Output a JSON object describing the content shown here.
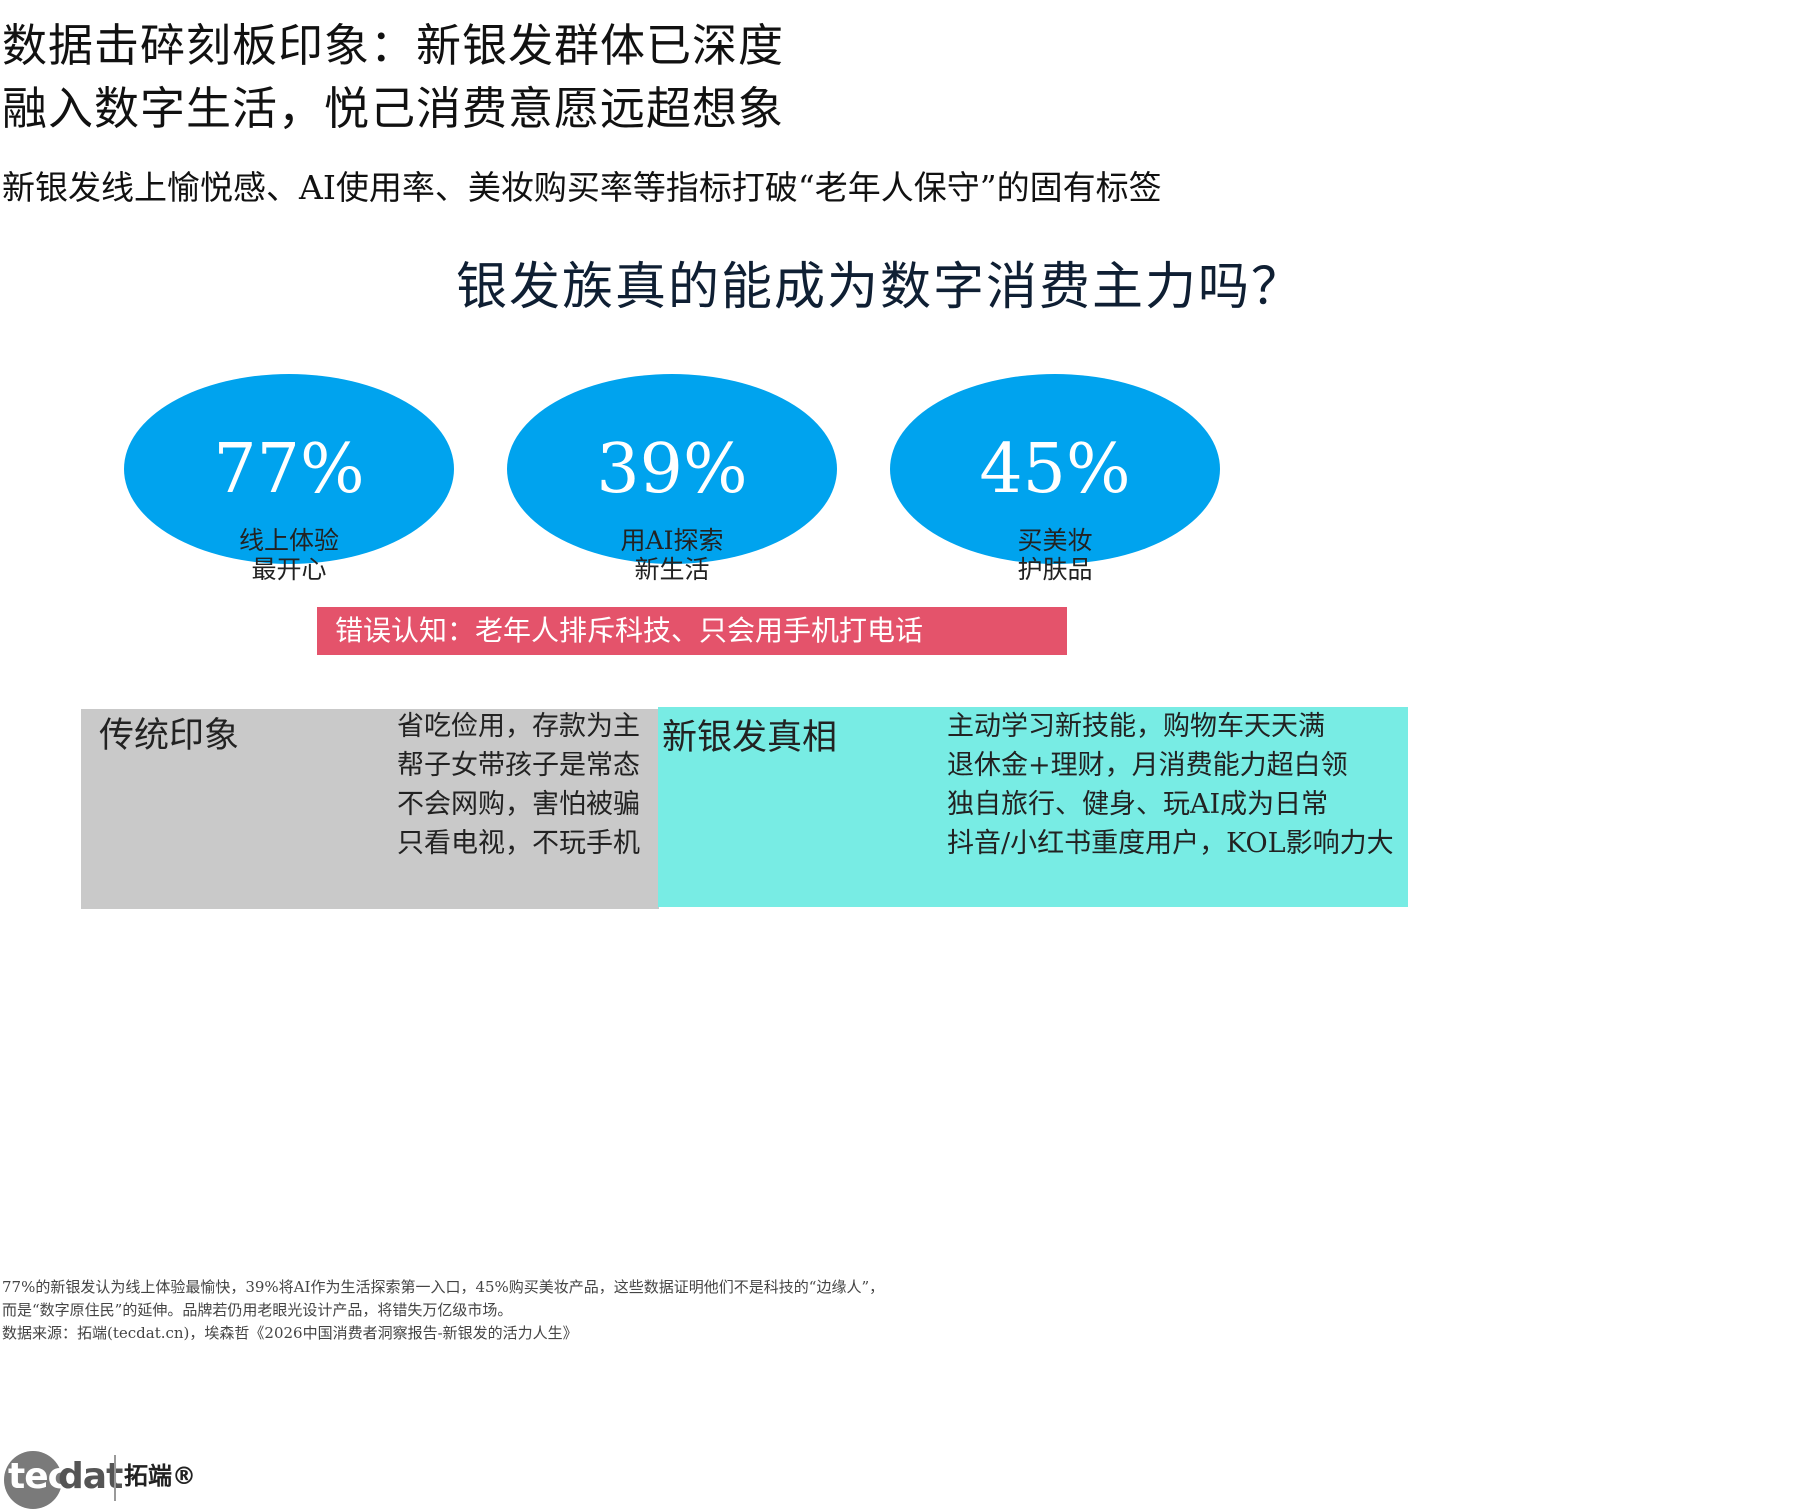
{
  "headline": {
    "line1": "数据击碎刻板印象：新银发群体已深度",
    "line2": "融入数字生活，悦己消费意愿远超想象"
  },
  "subhead": "新银发线上愉悦感、AI使用率、美妆购买率等指标打破“老年人保守”的固有标签",
  "question": "银发族真的能成为数字消费主力吗？",
  "stats": [
    {
      "value": "77%",
      "label_line1": "线上体验",
      "label_line2": "最开心"
    },
    {
      "value": "39%",
      "label_line1": "用AI探索",
      "label_line2": "新生活"
    },
    {
      "value": "45%",
      "label_line1": "买美妆",
      "label_line2": "护肤品"
    }
  ],
  "misconception": "错误认知：老年人排斥科技、只会用手机打电话",
  "traditional": {
    "title": "传统印象",
    "items": [
      "省吃俭用，存款为主",
      "帮子女带孩子是常态",
      "不会网购，害怕被骗",
      "只看电视，不玩手机"
    ]
  },
  "reality": {
    "title": "新银发真相",
    "items": [
      "主动学习新技能，购物车天天满",
      "退休金+理财，月消费能力超白领",
      "独自旅行、健身、玩AI成为日常",
      "抖音/小红书重度用户，KOL影响力大"
    ]
  },
  "notes": {
    "line1": "77%的新银发认为线上体验最愉快，39%将AI作为生活探索第一入口，45%购买美妆产品，这些数据证明他们不是科技的“边缘人”，",
    "line2": "而是“数字原住民”的延伸。品牌若仍用老眼光设计产品，将错失万亿级市场。",
    "source": "数据来源：拓端(tecdat.cn)，埃森哲《2026中国消费者洞察报告-新银发的活力人生》"
  },
  "logo": {
    "part1": "tec",
    "part2": "dat",
    "chinese": "拓端®"
  },
  "colors": {
    "circle": "#00a3ee",
    "myth_bar": "#e4536b",
    "traditional_panel": "#c9c9c9",
    "reality_panel": "#78ece4"
  }
}
